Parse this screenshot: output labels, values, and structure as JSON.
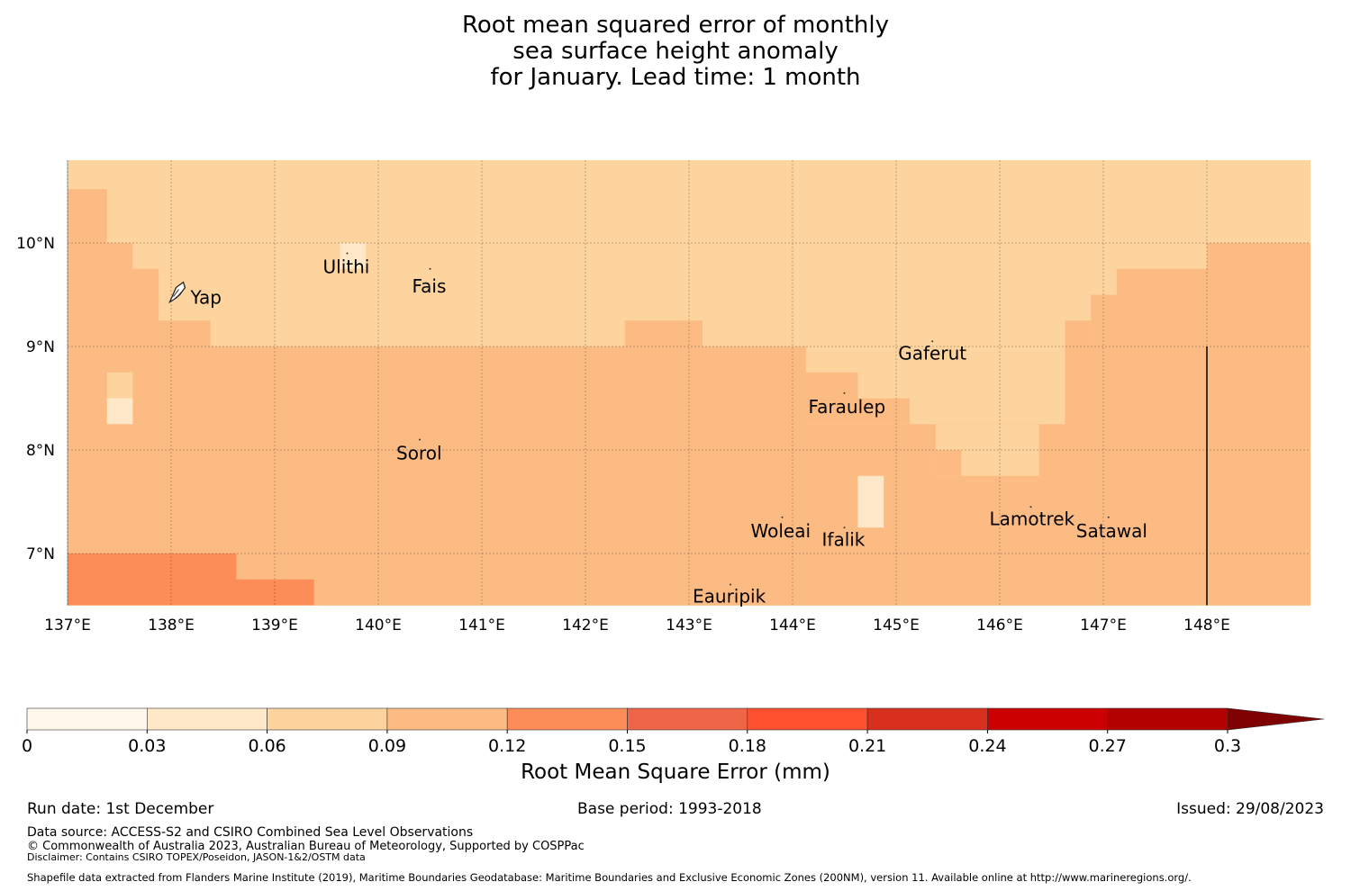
{
  "title": {
    "line1": "Root mean squared error of monthly",
    "line2": "sea surface height anomaly",
    "line3": "for January. Lead time: 1 month"
  },
  "map": {
    "lon_range": [
      137,
      149
    ],
    "lat_range": [
      6.5,
      10.8
    ],
    "lon_ticks": [
      {
        "value": 137,
        "label": "137°E"
      },
      {
        "value": 138,
        "label": "138°E"
      },
      {
        "value": 139,
        "label": "139°E"
      },
      {
        "value": 140,
        "label": "140°E"
      },
      {
        "value": 141,
        "label": "141°E"
      },
      {
        "value": 142,
        "label": "142°E"
      },
      {
        "value": 143,
        "label": "143°E"
      },
      {
        "value": 144,
        "label": "144°E"
      },
      {
        "value": 145,
        "label": "145°E"
      },
      {
        "value": 146,
        "label": "146°E"
      },
      {
        "value": 147,
        "label": "147°E"
      },
      {
        "value": 148,
        "label": "148°E"
      }
    ],
    "lat_ticks": [
      {
        "value": 10,
        "label": "10°N"
      },
      {
        "value": 9,
        "label": "9°N"
      },
      {
        "value": 8,
        "label": "8°N"
      },
      {
        "value": 7,
        "label": "7°N"
      }
    ],
    "background_color": "#fdd49e",
    "class_colors": [
      "#fff7ec",
      "#fee8c8",
      "#fdd49e",
      "#fdbb84",
      "#fc8d59"
    ],
    "regions": [
      {
        "class": 3,
        "lon": [
          137.0,
          149.0
        ],
        "lat": [
          6.5,
          9.0
        ]
      },
      {
        "class": 3,
        "lon": [
          148.0,
          149.0
        ],
        "lat": [
          9.0,
          10.0
        ]
      },
      {
        "class": 3,
        "lon": [
          137.0,
          137.38
        ],
        "lat": [
          9.0,
          10.52
        ]
      },
      {
        "class": 3,
        "lon": [
          137.0,
          137.13
        ],
        "lat": [
          10.52,
          10.5
        ]
      },
      {
        "class": 3,
        "lon": [
          137.0,
          137.63
        ],
        "lat": [
          9.0,
          10.0
        ]
      },
      {
        "class": 3,
        "lon": [
          137.0,
          137.88
        ],
        "lat": [
          9.0,
          9.75
        ]
      },
      {
        "class": 3,
        "lon": [
          137.0,
          138.38
        ],
        "lat": [
          9.0,
          9.25
        ]
      },
      {
        "class": 3,
        "lon": [
          142.38,
          143.13
        ],
        "lat": [
          9.0,
          9.25
        ]
      },
      {
        "class": 3,
        "lon": [
          147.13,
          148.0
        ],
        "lat": [
          9.0,
          9.75
        ]
      },
      {
        "class": 3,
        "lon": [
          146.88,
          147.13
        ],
        "lat": [
          9.0,
          9.5
        ]
      },
      {
        "class": 3,
        "lon": [
          146.63,
          146.88
        ],
        "lat": [
          9.0,
          9.25
        ]
      },
      {
        "class": 2,
        "lon": [
          144.13,
          146.63
        ],
        "lat": [
          8.25,
          9.0
        ]
      },
      {
        "class": 2,
        "lon": [
          144.63,
          145.13
        ],
        "lat": [
          8.5,
          8.75
        ]
      },
      {
        "class": 3,
        "lon": [
          144.13,
          144.63
        ],
        "lat": [
          8.5,
          8.75
        ]
      },
      {
        "class": 3,
        "lon": [
          144.13,
          145.13
        ],
        "lat": [
          8.25,
          8.5
        ]
      },
      {
        "class": 2,
        "lon": [
          145.38,
          146.38
        ],
        "lat": [
          7.75,
          8.25
        ]
      },
      {
        "class": 3,
        "lon": [
          145.38,
          145.63
        ],
        "lat": [
          7.75,
          8.0
        ]
      },
      {
        "class": 3,
        "lon": [
          146.38,
          146.63
        ],
        "lat": [
          8.25,
          8.25
        ]
      },
      {
        "class": 2,
        "lon": [
          137.38,
          137.63
        ],
        "lat": [
          8.5,
          8.75
        ]
      },
      {
        "class": 1,
        "lon": [
          137.38,
          137.63
        ],
        "lat": [
          8.25,
          8.5
        ]
      },
      {
        "class": 1,
        "lon": [
          144.63,
          144.88
        ],
        "lat": [
          7.25,
          7.75
        ]
      },
      {
        "class": 1,
        "lon": [
          139.63,
          139.88
        ],
        "lat": [
          9.75,
          10.0
        ]
      },
      {
        "class": 4,
        "lon": [
          137.0,
          138.63
        ],
        "lat": [
          6.5,
          7.0
        ]
      },
      {
        "class": 4,
        "lon": [
          138.63,
          139.38
        ],
        "lat": [
          6.5,
          6.75
        ]
      }
    ],
    "boundary_line": {
      "lon": 148.0,
      "lat": [
        6.5,
        9.0
      ]
    },
    "islands": [
      {
        "name": "Yap",
        "lon": 138.1,
        "lat": 9.5,
        "dx": 10,
        "dy": 10
      },
      {
        "name": "Ulithi",
        "lon": 139.7,
        "lat": 9.9,
        "dx": -27,
        "dy": 22
      },
      {
        "name": "Fais",
        "lon": 140.5,
        "lat": 9.75,
        "dx": -20,
        "dy": 26
      },
      {
        "name": "Gaferut",
        "lon": 145.35,
        "lat": 9.05,
        "dx": -38,
        "dy": 20
      },
      {
        "name": "Faraulep",
        "lon": 144.5,
        "lat": 8.55,
        "dx": -40,
        "dy": 22
      },
      {
        "name": "Sorol",
        "lon": 140.4,
        "lat": 8.1,
        "dx": -26,
        "dy": 22
      },
      {
        "name": "Woleai",
        "lon": 143.9,
        "lat": 7.35,
        "dx": -35,
        "dy": 22
      },
      {
        "name": "Ifalik",
        "lon": 144.5,
        "lat": 7.25,
        "dx": -25,
        "dy": 20
      },
      {
        "name": "Lamotrek",
        "lon": 146.3,
        "lat": 7.45,
        "dx": -46,
        "dy": 20
      },
      {
        "name": "Satawal",
        "lon": 147.05,
        "lat": 7.35,
        "dx": -36,
        "dy": 22
      },
      {
        "name": "Eauripik",
        "lon": 143.4,
        "lat": 6.7,
        "dx": -42,
        "dy": 20
      }
    ]
  },
  "colorbar": {
    "boundaries": [
      0,
      0.03,
      0.06,
      0.09,
      0.12,
      0.15,
      0.18,
      0.21,
      0.24,
      0.27,
      0.3
    ],
    "tick_labels": [
      "0",
      "0.03",
      "0.06",
      "0.09",
      "0.12",
      "0.15",
      "0.18",
      "0.21",
      "0.24",
      "0.27",
      "0.3"
    ],
    "colors": [
      "#fff7ec",
      "#fee8c8",
      "#fdd49e",
      "#fdbb84",
      "#fc8d59",
      "#ef6548",
      "#ff5030",
      "#d7301f",
      "#cc0000",
      "#b30000",
      "#7f0000"
    ],
    "title": "Root Mean Square Error (mm)"
  },
  "footer": {
    "run_date": "Run date: 1st December",
    "base_period": "Base period: 1993-2018",
    "issued": "Issued: 29/08/2023",
    "data_source": "Data source: ACCESS-S2 and CSIRO Combined Sea Level Observations",
    "copyright": "© Commonwealth of Australia 2023, Australian Bureau of Meteorology, Supported by COSPPac",
    "disclaimer": "Disclaimer: Contains CSIRO TOPEX/Poseidon, JASON-1&2/OSTM data",
    "shapefile": "Shapefile data extracted from Flanders Marine Institute (2019), Maritime Boundaries Geodatabase: Maritime Boundaries and Exclusive Economic Zones (200NM), version 11. Available online at http://www.marineregions.org/."
  }
}
